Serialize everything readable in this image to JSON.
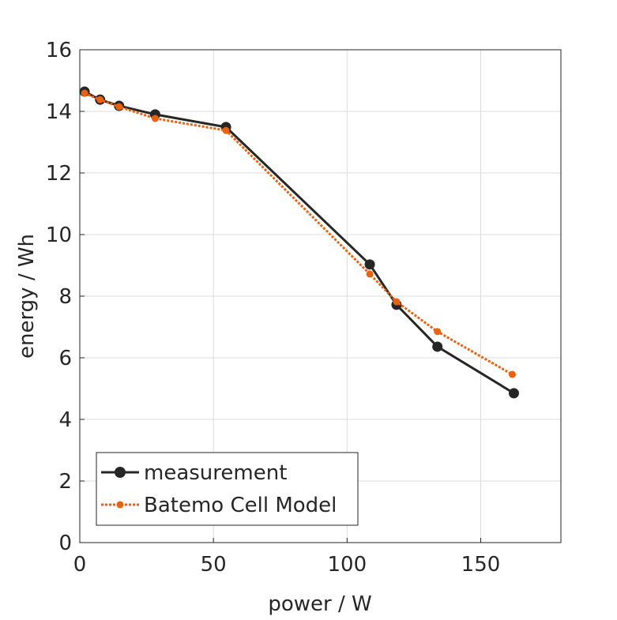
{
  "chart_data": {
    "type": "line",
    "title": "",
    "xlabel": "power / W",
    "ylabel": "energy / Wh",
    "xlim": [
      0,
      180
    ],
    "ylim": [
      0,
      16
    ],
    "xticks": [
      0,
      50,
      100,
      150
    ],
    "yticks": [
      0,
      2,
      4,
      6,
      8,
      10,
      12,
      14,
      16
    ],
    "grid": true,
    "legend_position": "bottom-left",
    "series": [
      {
        "name": "measurement",
        "color": "#262626",
        "style": "solid",
        "marker": "large-dot",
        "x": [
          1.8,
          7.6,
          14.7,
          28.2,
          54.7,
          108.5,
          118.5,
          133.8,
          162.4
        ],
        "y": [
          14.64,
          14.38,
          14.18,
          13.9,
          13.49,
          9.03,
          7.72,
          6.36,
          4.85
        ]
      },
      {
        "name": "Batemo Cell Model",
        "color": "#E8620F",
        "style": "dotted",
        "marker": "small-dot",
        "x": [
          1.8,
          7.6,
          14.7,
          28.2,
          54.7,
          108.5,
          118.5,
          133.8,
          161.8
        ],
        "y": [
          14.59,
          14.38,
          14.15,
          13.77,
          13.38,
          8.72,
          7.82,
          6.85,
          5.46
        ]
      }
    ]
  }
}
